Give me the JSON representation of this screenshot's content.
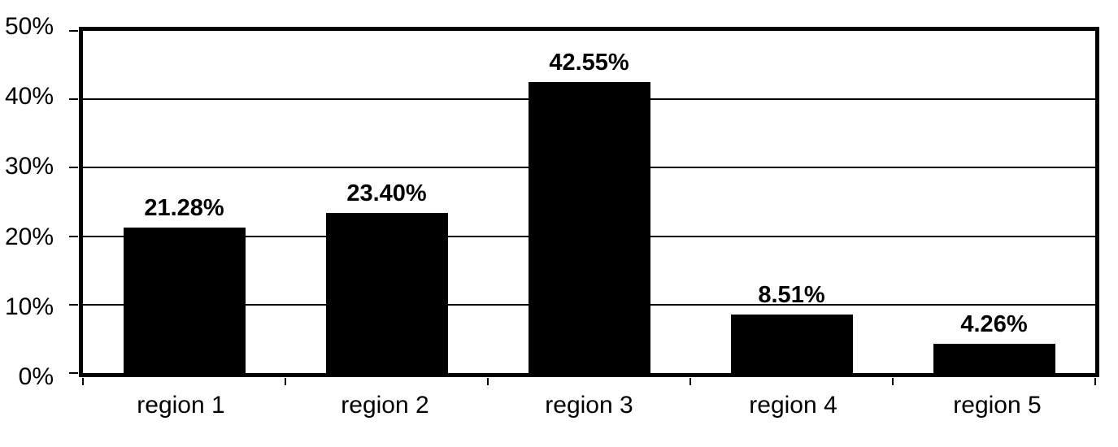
{
  "chart_data": {
    "type": "bar",
    "categories": [
      "region 1",
      "region 2",
      "region 3",
      "region 4",
      "region 5"
    ],
    "values": [
      21.28,
      23.4,
      42.55,
      8.51,
      4.26
    ],
    "value_labels": [
      "21.28%",
      "23.40%",
      "42.55%",
      "8.51%",
      "4.26%"
    ],
    "ytick_labels": [
      "50%",
      "40%",
      "30%",
      "20%",
      "10%",
      "0%"
    ],
    "ylim": [
      0,
      50
    ],
    "grid": "horizontal gridlines every 10%",
    "legend_position": "none",
    "bar_color": "#000000",
    "grid_color": "#000000",
    "background_color": "#ffffff"
  }
}
